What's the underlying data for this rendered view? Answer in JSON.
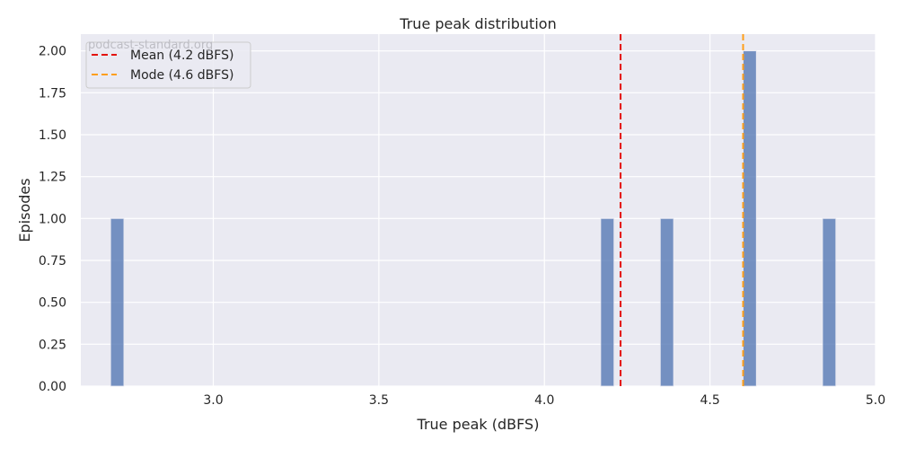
{
  "chart_data": {
    "type": "bar",
    "title": "True peak distribution",
    "xlabel": "True peak (dBFS)",
    "ylabel": "Episodes",
    "watermark": "podcast-standard.org",
    "xlim": [
      2.6,
      5.0
    ],
    "ylim": [
      0,
      2.1
    ],
    "xticks": [
      3.0,
      3.5,
      4.0,
      4.5,
      5.0
    ],
    "xtick_labels": [
      "3.0",
      "3.5",
      "4.0",
      "4.5",
      "5.0"
    ],
    "yticks": [
      0,
      0.25,
      0.5,
      0.75,
      1.0,
      1.25,
      1.5,
      1.75,
      2.0
    ],
    "ytick_labels": [
      "0.00",
      "0.25",
      "0.50",
      "0.75",
      "1.00",
      "1.25",
      "1.50",
      "1.75",
      "2.00"
    ],
    "bins": [
      {
        "start": 2.69,
        "end": 2.73,
        "count": 1
      },
      {
        "start": 4.17,
        "end": 4.21,
        "count": 1
      },
      {
        "start": 4.35,
        "end": 4.39,
        "count": 1
      },
      {
        "start": 4.6,
        "end": 4.64,
        "count": 2
      },
      {
        "start": 4.84,
        "end": 4.88,
        "count": 1
      }
    ],
    "reference_lines": [
      {
        "label": "Mean (4.2 dBFS)",
        "x": 4.23,
        "color": "#e3120b",
        "style": "dashed"
      },
      {
        "label": "Mode (4.6 dBFS)",
        "x": 4.6,
        "color": "#ff9f1a",
        "style": "dashed"
      }
    ],
    "legend_position": "top-left",
    "grid": true,
    "colors": {
      "background": "#eaeaf2",
      "grid": "#ffffff",
      "bar": "#4c72b0"
    }
  }
}
